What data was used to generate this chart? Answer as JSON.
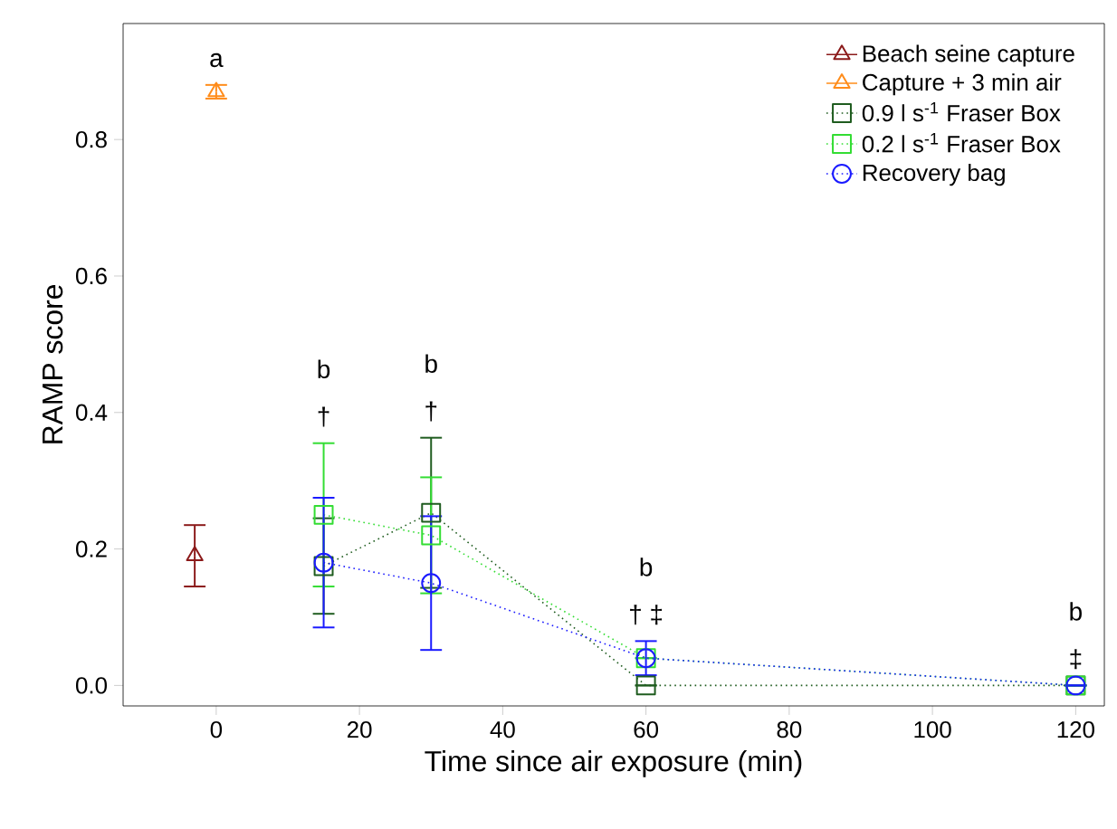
{
  "chart_data": {
    "type": "line",
    "xlabel": "Time since air exposure (min)",
    "ylabel": "RAMP score",
    "xlim": [
      -13,
      124
    ],
    "xticks": [
      0,
      20,
      40,
      60,
      80,
      100,
      120
    ],
    "ylim": [
      -0.03,
      0.97
    ],
    "yticks": [
      {
        "value": 0,
        "label": "0.0"
      },
      0.2,
      0.4,
      0.6,
      0.8
    ],
    "legend": "top right",
    "grid": false,
    "series": [
      {
        "name": "Beach seine capture",
        "color": "#8b1a1a",
        "marker": "triangle",
        "line_style": "solid",
        "x": [
          -3
        ],
        "values": [
          0.19
        ],
        "errors": [
          0.045
        ]
      },
      {
        "name": "Capture + 3 min air",
        "color": "#ff8c1a",
        "marker": "triangle",
        "line_style": "solid",
        "x": [
          0
        ],
        "values": [
          0.87
        ],
        "errors": [
          0.01
        ]
      },
      {
        "name": "0.9 l s$^{-1}$ Fraser Box",
        "color": "#1f5c1f",
        "marker": "square",
        "line_style": "dotted",
        "x": [
          15,
          30,
          60,
          120
        ],
        "values": [
          0.175,
          0.253,
          0.0,
          0.0
        ],
        "errors": [
          0.07,
          0.11,
          null,
          null
        ]
      },
      {
        "name": "0.2 l s$^{-1}$ Fraser Box",
        "color": "#33dd33",
        "marker": "square",
        "line_style": "dotted",
        "x": [
          15,
          30,
          60,
          120
        ],
        "values": [
          0.25,
          0.22,
          0.04,
          0.0
        ],
        "errors": [
          0.105,
          0.085,
          null,
          null
        ]
      },
      {
        "name": "Recovery bag",
        "color": "#1a1aff",
        "marker": "circle",
        "line_style": "dotted",
        "x": [
          15,
          30,
          60,
          120
        ],
        "values": [
          0.18,
          0.15,
          0.04,
          0.0
        ],
        "errors": [
          0.095,
          0.098,
          0.025,
          null
        ]
      }
    ],
    "annotations": [
      {
        "text": "a",
        "x": 0,
        "y": 0.88
      },
      {
        "text": "b",
        "x": 15,
        "y": 0.355
      },
      {
        "text": "†",
        "x": 15,
        "y": 0.355
      },
      {
        "text": "b",
        "x": 30,
        "y": 0.363
      },
      {
        "text": "†",
        "x": 30,
        "y": 0.363
      },
      {
        "text": "b",
        "x": 60,
        "y": 0.065
      },
      {
        "text": "† ‡",
        "x": 60,
        "y": 0.065
      },
      {
        "text": "b",
        "x": 120,
        "y": 0.0
      },
      {
        "text": "‡",
        "x": 120,
        "y": 0.0
      }
    ]
  }
}
